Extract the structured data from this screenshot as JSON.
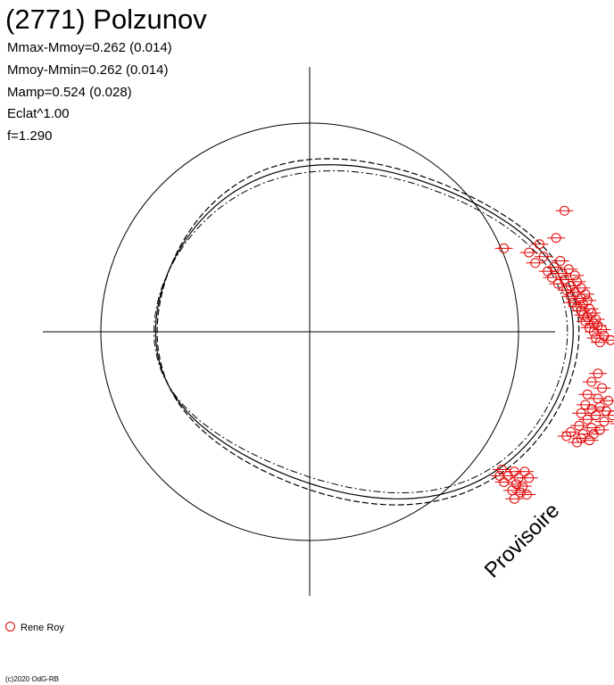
{
  "title": "(2771) Polzunov",
  "stats": [
    "Mmax-Mmoy=0.262 (0.014)",
    "Mmoy-Mmin=0.262 (0.014)",
    "Mamp=0.524 (0.028)",
    "Eclat^1.00",
    "f=1.290"
  ],
  "watermark": "Provisoire",
  "legend": {
    "label": "Rene Roy",
    "color": "#e00000"
  },
  "copyright": "(c)2020 OdG-RB",
  "chart_data": {
    "type": "scatter",
    "projection": "polar",
    "amplitude": 0.524,
    "mmax_minus_mmoy": 0.262,
    "mmoy_minus_mmin": 0.262,
    "frequency": 1.29,
    "reference_circle_radius": 1.0,
    "model_curve_radius_max": 1.262,
    "model_curve_radius_min": 0.738,
    "series": [
      {
        "name": "Rene Roy",
        "color": "#e00000",
        "points": [
          [
            1.22,
            0.58
          ],
          [
            1.18,
            0.45
          ],
          [
            1.1,
            0.42
          ],
          [
            0.93,
            0.4
          ],
          [
            1.05,
            0.38
          ],
          [
            1.12,
            0.36
          ],
          [
            1.2,
            0.34
          ],
          [
            1.08,
            0.33
          ],
          [
            1.17,
            0.31
          ],
          [
            1.24,
            0.3
          ],
          [
            1.14,
            0.29
          ],
          [
            1.21,
            0.28
          ],
          [
            1.27,
            0.27
          ],
          [
            1.16,
            0.26
          ],
          [
            1.22,
            0.25
          ],
          [
            1.28,
            0.24
          ],
          [
            1.19,
            0.23
          ],
          [
            1.25,
            0.22
          ],
          [
            1.3,
            0.21
          ],
          [
            1.23,
            0.2
          ],
          [
            1.27,
            0.19
          ],
          [
            1.32,
            0.18
          ],
          [
            1.25,
            0.17
          ],
          [
            1.3,
            0.16
          ],
          [
            1.33,
            0.15
          ],
          [
            1.26,
            0.14
          ],
          [
            1.31,
            0.13
          ],
          [
            1.28,
            0.12
          ],
          [
            1.34,
            0.11
          ],
          [
            1.3,
            0.1
          ],
          [
            1.35,
            0.09
          ],
          [
            1.31,
            0.08
          ],
          [
            1.33,
            0.07
          ],
          [
            1.37,
            0.06
          ],
          [
            1.32,
            0.05
          ],
          [
            1.36,
            0.04
          ],
          [
            1.38,
            0.03
          ],
          [
            1.34,
            0.02
          ],
          [
            1.4,
            0.01
          ],
          [
            1.36,
            0.0
          ],
          [
            1.41,
            -0.02
          ],
          [
            1.37,
            -0.03
          ],
          [
            1.44,
            -0.04
          ],
          [
            1.39,
            -0.05
          ],
          [
            1.52,
            -0.05
          ],
          [
            1.38,
            -0.2
          ],
          [
            1.35,
            -0.24
          ],
          [
            1.4,
            -0.27
          ],
          [
            1.33,
            -0.3
          ],
          [
            1.38,
            -0.32
          ],
          [
            1.43,
            -0.33
          ],
          [
            1.32,
            -0.35
          ],
          [
            1.39,
            -0.36
          ],
          [
            1.35,
            -0.37
          ],
          [
            1.42,
            -0.38
          ],
          [
            1.3,
            -0.39
          ],
          [
            1.37,
            -0.4
          ],
          [
            1.45,
            -0.4
          ],
          [
            1.33,
            -0.42
          ],
          [
            1.41,
            -0.43
          ],
          [
            1.48,
            -0.44
          ],
          [
            1.29,
            -0.45
          ],
          [
            1.35,
            -0.46
          ],
          [
            1.39,
            -0.47
          ],
          [
            1.25,
            -0.48
          ],
          [
            1.31,
            -0.49
          ],
          [
            1.36,
            -0.49
          ],
          [
            1.23,
            -0.5
          ],
          [
            1.3,
            -0.51
          ],
          [
            1.34,
            -0.52
          ],
          [
            1.28,
            -0.53
          ],
          [
            1.58,
            -0.3
          ],
          [
            1.52,
            -0.4
          ],
          [
            0.92,
            -0.66
          ],
          [
            0.98,
            -0.67
          ],
          [
            1.03,
            -0.67
          ],
          [
            0.95,
            -0.69
          ],
          [
            1.0,
            -0.7
          ],
          [
            1.05,
            -0.7
          ],
          [
            0.93,
            -0.72
          ],
          [
            0.99,
            -0.73
          ],
          [
            1.02,
            -0.74
          ],
          [
            0.97,
            -0.76
          ],
          [
            1.01,
            -0.77
          ],
          [
            1.04,
            -0.78
          ],
          [
            0.98,
            -0.8
          ],
          [
            0.91,
            -0.69
          ]
        ]
      }
    ]
  }
}
